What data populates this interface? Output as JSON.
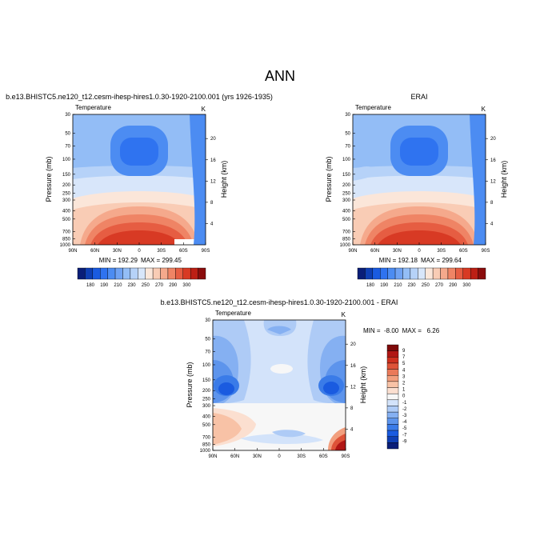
{
  "figure": {
    "title": "ANN"
  },
  "colors": {
    "abs_scale": [
      "#0a1e78",
      "#0f3fb4",
      "#1a5be0",
      "#2f73f0",
      "#4c8cf2",
      "#6fa2f3",
      "#93bdf6",
      "#b6d2f8",
      "#d8e6fa",
      "#fbe6d9",
      "#f9ccb5",
      "#f5a98c",
      "#ef8465",
      "#e65d42",
      "#d83a24",
      "#bd1f14",
      "#8a0c0c"
    ],
    "diff_scale": [
      "#0a1e78",
      "#0f3fb4",
      "#1a5be0",
      "#3a7be8",
      "#5d94ec",
      "#85b0f2",
      "#aecbf6",
      "#d3e3fa",
      "#f7f7f7",
      "#fbdfd0",
      "#f8c2a6",
      "#f29f7e",
      "#ea7a5a",
      "#de5338",
      "#ce2f1e",
      "#b01614",
      "#7e0a0a"
    ]
  },
  "chart_data": [
    {
      "type": "heatmap",
      "title": "b.e13.BHISTC5.ne120_t12.cesm-ihesp-hires1.0.30-1920-2100.001 (yrs 1926-1935)",
      "left_label": "Temperature",
      "right_label": "K",
      "xlabel": "",
      "ylabel": "Pressure (mb)",
      "y2label": "Height (km)",
      "x_ticks": [
        "90N",
        "60N",
        "30N",
        "0",
        "30S",
        "60S",
        "90S"
      ],
      "y_ticks": [
        "30",
        "50",
        "70",
        "100",
        "150",
        "200",
        "250",
        "300",
        "400",
        "500",
        "700",
        "850",
        "1000"
      ],
      "y_tick_values": [
        30,
        50,
        70,
        100,
        150,
        200,
        250,
        300,
        400,
        500,
        700,
        850,
        1000
      ],
      "height_ticks": [
        "20",
        "16",
        "12",
        "8",
        "4"
      ],
      "height_tick_values": [
        20,
        16,
        12,
        8,
        4
      ],
      "ylim": [
        1000,
        30
      ],
      "xlim": [
        90,
        -90
      ],
      "y_scale": "log",
      "min_label": "MIN = 192.29",
      "max_label": "MAX = 299.45",
      "colorbar_labels": [
        "180",
        "190",
        "210",
        "230",
        "250",
        "270",
        "290",
        "300"
      ],
      "colorbar_placement": "bottom"
    },
    {
      "type": "heatmap",
      "title": "ERAI",
      "left_label": "Temperature",
      "right_label": "K",
      "xlabel": "",
      "ylabel": "Pressure (mb)",
      "y2label": "Height (km)",
      "x_ticks": [
        "90N",
        "60N",
        "30N",
        "0",
        "30S",
        "60S",
        "90S"
      ],
      "y_ticks": [
        "30",
        "50",
        "70",
        "100",
        "150",
        "200",
        "250",
        "300",
        "400",
        "500",
        "700",
        "850",
        "1000"
      ],
      "y_tick_values": [
        30,
        50,
        70,
        100,
        150,
        200,
        250,
        300,
        400,
        500,
        700,
        850,
        1000
      ],
      "height_ticks": [
        "20",
        "16",
        "12",
        "8",
        "4"
      ],
      "height_tick_values": [
        20,
        16,
        12,
        8,
        4
      ],
      "ylim": [
        1000,
        30
      ],
      "xlim": [
        90,
        -90
      ],
      "y_scale": "log",
      "min_label": "MIN = 192.18",
      "max_label": "MAX = 299.64",
      "colorbar_labels": [
        "180",
        "190",
        "210",
        "230",
        "250",
        "270",
        "290",
        "300"
      ],
      "colorbar_placement": "bottom"
    },
    {
      "type": "heatmap",
      "title": "b.e13.BHISTC5.ne120_t12.cesm-ihesp-hires1.0.30-1920-2100.001 - ERAI",
      "left_label": "Temperature",
      "right_label": "K",
      "xlabel": "",
      "ylabel": "Pressure (mb)",
      "y2label": "Height (km)",
      "x_ticks": [
        "90N",
        "60N",
        "30N",
        "0",
        "30S",
        "60S",
        "90S"
      ],
      "y_ticks": [
        "30",
        "50",
        "70",
        "100",
        "150",
        "200",
        "250",
        "300",
        "400",
        "500",
        "700",
        "850",
        "1000"
      ],
      "y_tick_values": [
        30,
        50,
        70,
        100,
        150,
        200,
        250,
        300,
        400,
        500,
        700,
        850,
        1000
      ],
      "height_ticks": [
        "20",
        "16",
        "12",
        "8",
        "4"
      ],
      "height_tick_values": [
        20,
        16,
        12,
        8,
        4
      ],
      "ylim": [
        1000,
        30
      ],
      "xlim": [
        90,
        -90
      ],
      "y_scale": "log",
      "minmax_label": "MIN =  -8.00  MAX =   6.26",
      "colorbar_labels": [
        "9",
        "7",
        "5",
        "4",
        "3",
        "2",
        "1",
        "0",
        "-1",
        "-2",
        "-3",
        "-4",
        "-5",
        "-7",
        "-9"
      ],
      "colorbar_placement": "right"
    }
  ]
}
